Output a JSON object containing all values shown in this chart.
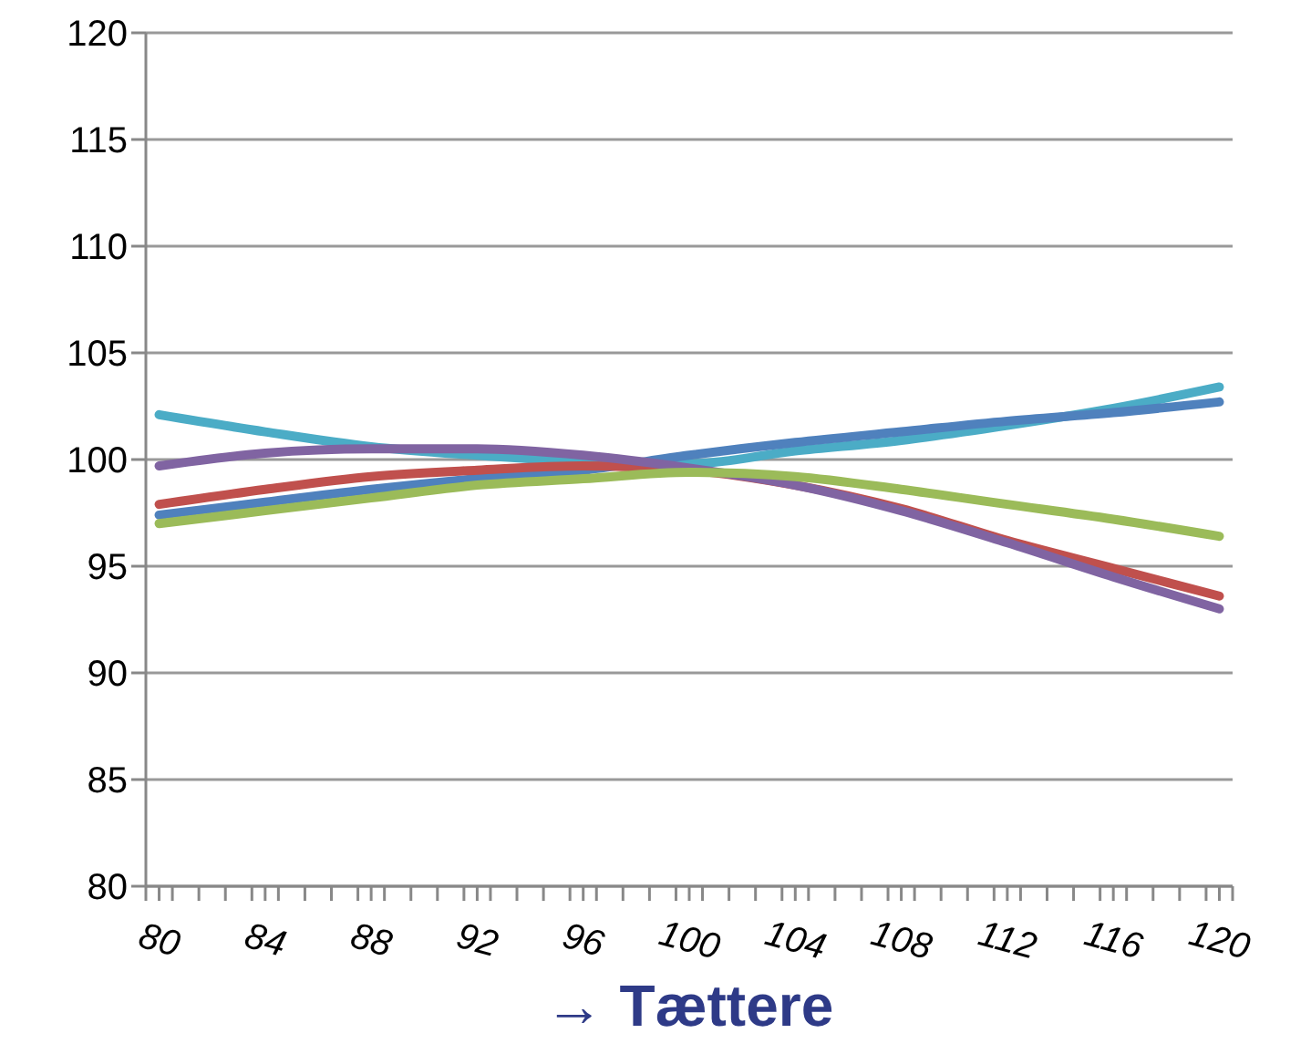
{
  "chart_data": {
    "type": "line",
    "xlabel": "→ Tættere",
    "x": [
      80,
      84,
      88,
      92,
      96,
      100,
      104,
      108,
      112,
      116,
      120
    ],
    "series": [
      {
        "color": "#4bacc6",
        "values": [
          102.1,
          101.3,
          100.6,
          100.2,
          99.9,
          99.8,
          100.4,
          100.9,
          101.6,
          102.4,
          103.4
        ]
      },
      {
        "color": "#4f81bd",
        "values": [
          97.4,
          98.0,
          98.6,
          99.1,
          99.5,
          100.2,
          100.8,
          101.3,
          101.8,
          102.2,
          102.7
        ]
      },
      {
        "color": "#c0504d",
        "values": [
          97.9,
          98.6,
          99.2,
          99.5,
          99.7,
          99.5,
          98.8,
          97.7,
          96.2,
          94.9,
          93.6
        ]
      },
      {
        "color": "#8064a2",
        "values": [
          99.7,
          100.3,
          100.5,
          100.5,
          100.2,
          99.6,
          98.8,
          97.6,
          96.1,
          94.5,
          93.0
        ]
      },
      {
        "color": "#9bbb59",
        "values": [
          97.0,
          97.6,
          98.2,
          98.8,
          99.1,
          99.4,
          99.2,
          98.6,
          97.9,
          97.2,
          96.4
        ]
      }
    ],
    "xlim": [
      79.5,
      120.5
    ],
    "xticks": [
      {
        "value": 79.5,
        "label": null
      },
      80,
      {
        "value": 80.5,
        "label": null
      },
      {
        "value": 81.5,
        "label": null
      },
      {
        "value": 82.5,
        "label": null
      },
      {
        "value": 83.5,
        "label": null
      },
      84,
      {
        "value": 84.5,
        "label": null
      },
      {
        "value": 85.5,
        "label": null
      },
      {
        "value": 86.5,
        "label": null
      },
      {
        "value": 87.5,
        "label": null
      },
      88,
      {
        "value": 88.5,
        "label": null
      },
      {
        "value": 89.5,
        "label": null
      },
      {
        "value": 90.5,
        "label": null
      },
      {
        "value": 91.5,
        "label": null
      },
      92,
      {
        "value": 92.5,
        "label": null
      },
      {
        "value": 93.5,
        "label": null
      },
      {
        "value": 94.5,
        "label": null
      },
      {
        "value": 95.5,
        "label": null
      },
      96,
      {
        "value": 96.5,
        "label": null
      },
      {
        "value": 97.5,
        "label": null
      },
      {
        "value": 98.5,
        "label": null
      },
      {
        "value": 99.5,
        "label": null
      },
      100,
      {
        "value": 100.5,
        "label": null
      },
      {
        "value": 101.5,
        "label": null
      },
      {
        "value": 102.5,
        "label": null
      },
      {
        "value": 103.5,
        "label": null
      },
      104,
      {
        "value": 104.5,
        "label": null
      },
      {
        "value": 105.5,
        "label": null
      },
      {
        "value": 106.5,
        "label": null
      },
      {
        "value": 107.5,
        "label": null
      },
      108,
      {
        "value": 108.5,
        "label": null
      },
      {
        "value": 109.5,
        "label": null
      },
      {
        "value": 110.5,
        "label": null
      },
      {
        "value": 111.5,
        "label": null
      },
      112,
      {
        "value": 112.5,
        "label": null
      },
      {
        "value": 113.5,
        "label": null
      },
      {
        "value": 114.5,
        "label": null
      },
      {
        "value": 115.5,
        "label": null
      },
      116,
      {
        "value": 116.5,
        "label": null
      },
      {
        "value": 117.5,
        "label": null
      },
      {
        "value": 118.5,
        "label": null
      },
      {
        "value": 119.5,
        "label": null
      },
      120,
      {
        "value": 120.5,
        "label": null
      }
    ],
    "ylim": [
      80,
      120
    ],
    "yticks": [
      80,
      85,
      90,
      95,
      100,
      105,
      110,
      115,
      120
    ],
    "grid": "y",
    "marker": "none",
    "line_style": "solid",
    "legend": false
  }
}
